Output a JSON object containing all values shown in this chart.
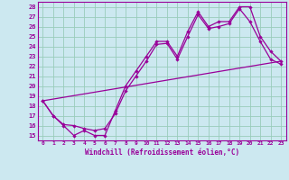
{
  "xlabel": "Windchill (Refroidissement éolien,°C)",
  "bg_color": "#cce8f0",
  "line_color": "#990099",
  "grid_color": "#99ccbb",
  "xlim": [
    -0.5,
    23.5
  ],
  "ylim": [
    14.5,
    28.5
  ],
  "xticks": [
    0,
    1,
    2,
    3,
    4,
    5,
    6,
    7,
    8,
    9,
    10,
    11,
    12,
    13,
    14,
    15,
    16,
    17,
    18,
    19,
    20,
    21,
    22,
    23
  ],
  "yticks": [
    15,
    16,
    17,
    18,
    19,
    20,
    21,
    22,
    23,
    24,
    25,
    26,
    27,
    28
  ],
  "line1_x": [
    0,
    1,
    2,
    3,
    4,
    5,
    6,
    7,
    8,
    9,
    10,
    11,
    12,
    13,
    14,
    15,
    16,
    17,
    18,
    19,
    20,
    21,
    22,
    23
  ],
  "line1_y": [
    18.5,
    17.0,
    16.0,
    15.0,
    15.5,
    15.0,
    15.0,
    17.5,
    20.0,
    21.5,
    23.0,
    24.5,
    24.5,
    23.0,
    25.5,
    27.5,
    26.0,
    26.5,
    26.5,
    28.0,
    28.0,
    25.0,
    23.5,
    22.5
  ],
  "line2_x": [
    0,
    1,
    2,
    3,
    4,
    5,
    6,
    7,
    8,
    9,
    10,
    11,
    12,
    13,
    14,
    15,
    16,
    17,
    18,
    19,
    20,
    21,
    22,
    23
  ],
  "line2_y": [
    18.5,
    17.0,
    16.1,
    16.0,
    15.7,
    15.5,
    15.7,
    17.2,
    19.5,
    21.0,
    22.5,
    24.2,
    24.3,
    22.7,
    25.0,
    27.2,
    25.8,
    26.0,
    26.3,
    27.8,
    26.5,
    24.5,
    22.7,
    22.2
  ],
  "line3_x": [
    0,
    23
  ],
  "line3_y": [
    18.5,
    22.5
  ]
}
